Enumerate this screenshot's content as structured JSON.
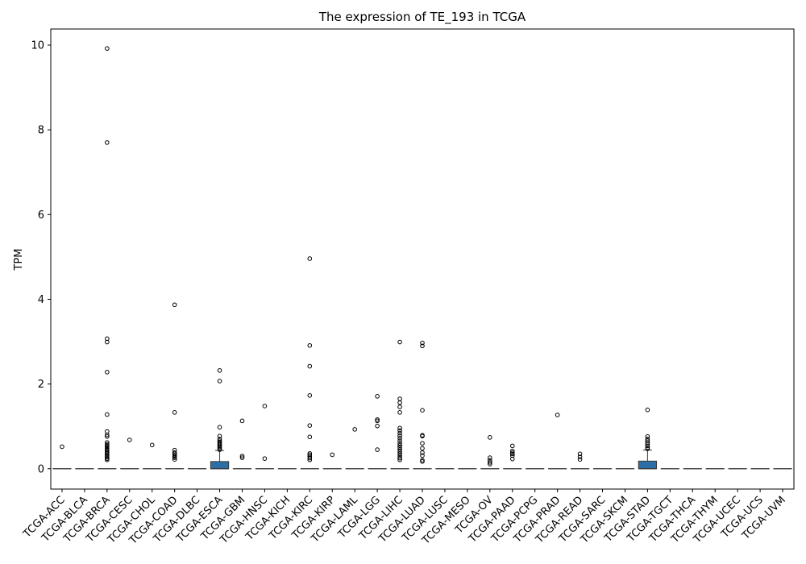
{
  "chart_data": {
    "type": "box",
    "title": "The expression of TE_193 in TCGA",
    "xlabel": "",
    "ylabel": "TPM",
    "ylim": [
      -0.48,
      10.38
    ],
    "yticks": [
      0,
      2,
      4,
      6,
      8,
      10
    ],
    "grid": false,
    "legend": "none",
    "box_color": "#2b6fa6",
    "categories": [
      "TCGA-ACC",
      "TCGA-BLCA",
      "TCGA-BRCA",
      "TCGA-CESC",
      "TCGA-CHOL",
      "TCGA-COAD",
      "TCGA-DLBC",
      "TCGA-ESCA",
      "TCGA-GBM",
      "TCGA-HNSC",
      "TCGA-KICH",
      "TCGA-KIRC",
      "TCGA-KIRP",
      "TCGA-LAML",
      "TCGA-LGG",
      "TCGA-LIHC",
      "TCGA-LUAD",
      "TCGA-LUSC",
      "TCGA-MESO",
      "TCGA-OV",
      "TCGA-PAAD",
      "TCGA-PCPG",
      "TCGA-PRAD",
      "TCGA-READ",
      "TCGA-SARC",
      "TCGA-SKCM",
      "TCGA-STAD",
      "TCGA-TGCT",
      "TCGA-THCA",
      "TCGA-THYM",
      "TCGA-UCEC",
      "TCGA-UCS",
      "TCGA-UVM"
    ],
    "boxes": [
      {
        "q1": 0,
        "median": 0,
        "q3": 0,
        "whisker_low": 0,
        "whisker_high": 0,
        "outliers": [
          0.52
        ]
      },
      {
        "q1": 0,
        "median": 0,
        "q3": 0,
        "whisker_low": 0,
        "whisker_high": 0,
        "outliers": []
      },
      {
        "q1": 0,
        "median": 0,
        "q3": 0,
        "whisker_low": 0,
        "whisker_high": 0,
        "outliers": [
          9.92,
          7.7,
          3.07,
          2.99,
          2.28,
          1.28,
          0.88,
          0.8,
          0.76,
          0.62,
          0.58,
          0.55,
          0.52,
          0.48,
          0.45,
          0.42,
          0.39,
          0.36,
          0.33,
          0.3,
          0.27,
          0.24,
          0.21
        ]
      },
      {
        "q1": 0,
        "median": 0,
        "q3": 0,
        "whisker_low": 0,
        "whisker_high": 0,
        "outliers": [
          0.68
        ]
      },
      {
        "q1": 0,
        "median": 0,
        "q3": 0,
        "whisker_low": 0,
        "whisker_high": 0,
        "outliers": [
          0.56
        ]
      },
      {
        "q1": 0,
        "median": 0,
        "q3": 0,
        "whisker_low": 0,
        "whisker_high": 0,
        "outliers": [
          3.87,
          1.33,
          0.44,
          0.38,
          0.35,
          0.32,
          0.29,
          0.26,
          0.22
        ]
      },
      {
        "q1": 0,
        "median": 0,
        "q3": 0,
        "whisker_low": 0,
        "whisker_high": 0,
        "outliers": []
      },
      {
        "q1": 0,
        "median": 0,
        "q3": 0.17,
        "whisker_low": 0,
        "whisker_high": 0.43,
        "outliers": [
          2.32,
          2.07,
          0.98,
          0.77,
          0.7,
          0.66,
          0.63,
          0.6,
          0.57,
          0.54,
          0.51,
          0.48,
          0.45
        ]
      },
      {
        "q1": 0,
        "median": 0,
        "q3": 0,
        "whisker_low": 0,
        "whisker_high": 0,
        "outliers": [
          1.13,
          0.3,
          0.26
        ]
      },
      {
        "q1": 0,
        "median": 0,
        "q3": 0,
        "whisker_low": 0,
        "whisker_high": 0,
        "outliers": [
          1.48,
          0.24
        ]
      },
      {
        "q1": 0,
        "median": 0,
        "q3": 0,
        "whisker_low": 0,
        "whisker_high": 0,
        "outliers": []
      },
      {
        "q1": 0,
        "median": 0,
        "q3": 0,
        "whisker_low": 0,
        "whisker_high": 0,
        "outliers": [
          4.96,
          2.91,
          2.42,
          1.73,
          1.02,
          0.75,
          0.36,
          0.33,
          0.29,
          0.25,
          0.21
        ]
      },
      {
        "q1": 0,
        "median": 0,
        "q3": 0,
        "whisker_low": 0,
        "whisker_high": 0,
        "outliers": [
          0.33
        ]
      },
      {
        "q1": 0,
        "median": 0,
        "q3": 0,
        "whisker_low": 0,
        "whisker_high": 0,
        "outliers": [
          0.93
        ]
      },
      {
        "q1": 0,
        "median": 0,
        "q3": 0,
        "whisker_low": 0,
        "whisker_high": 0,
        "outliers": [
          1.71,
          1.16,
          1.13,
          1.01,
          0.45
        ]
      },
      {
        "q1": 0,
        "median": 0,
        "q3": 0,
        "whisker_low": 0,
        "whisker_high": 0,
        "outliers": [
          2.99,
          1.65,
          1.56,
          1.46,
          1.33,
          0.96,
          0.9,
          0.84,
          0.78,
          0.72,
          0.66,
          0.6,
          0.55,
          0.5,
          0.45,
          0.4,
          0.35,
          0.3,
          0.25,
          0.21
        ]
      },
      {
        "q1": 0,
        "median": 0,
        "q3": 0,
        "whisker_low": 0,
        "whisker_high": 0,
        "outliers": [
          2.97,
          2.9,
          1.38,
          0.79,
          0.77,
          0.6,
          0.48,
          0.38,
          0.31,
          0.2,
          0.17
        ]
      },
      {
        "q1": 0,
        "median": 0,
        "q3": 0,
        "whisker_low": 0,
        "whisker_high": 0,
        "outliers": []
      },
      {
        "q1": 0,
        "median": 0,
        "q3": 0,
        "whisker_low": 0,
        "whisker_high": 0,
        "outliers": []
      },
      {
        "q1": 0,
        "median": 0,
        "q3": 0,
        "whisker_low": 0,
        "whisker_high": 0,
        "outliers": [
          0.74,
          0.26,
          0.2,
          0.15,
          0.11
        ]
      },
      {
        "q1": 0,
        "median": 0,
        "q3": 0,
        "whisker_low": 0,
        "whisker_high": 0,
        "outliers": [
          0.54,
          0.42,
          0.38,
          0.35,
          0.31,
          0.23
        ]
      },
      {
        "q1": 0,
        "median": 0,
        "q3": 0,
        "whisker_low": 0,
        "whisker_high": 0,
        "outliers": []
      },
      {
        "q1": 0,
        "median": 0,
        "q3": 0,
        "whisker_low": 0,
        "whisker_high": 0,
        "outliers": [
          1.27
        ]
      },
      {
        "q1": 0,
        "median": 0,
        "q3": 0,
        "whisker_low": 0,
        "whisker_high": 0,
        "outliers": [
          0.35,
          0.28,
          0.22
        ]
      },
      {
        "q1": 0,
        "median": 0,
        "q3": 0,
        "whisker_low": 0,
        "whisker_high": 0,
        "outliers": []
      },
      {
        "q1": 0,
        "median": 0,
        "q3": 0,
        "whisker_low": 0,
        "whisker_high": 0,
        "outliers": []
      },
      {
        "q1": 0,
        "median": 0,
        "q3": 0.18,
        "whisker_low": 0,
        "whisker_high": 0.44,
        "outliers": [
          1.39,
          0.76,
          0.7,
          0.66,
          0.62,
          0.58,
          0.54,
          0.5,
          0.47
        ]
      },
      {
        "q1": 0,
        "median": 0,
        "q3": 0,
        "whisker_low": 0,
        "whisker_high": 0,
        "outliers": []
      },
      {
        "q1": 0,
        "median": 0,
        "q3": 0,
        "whisker_low": 0,
        "whisker_high": 0,
        "outliers": []
      },
      {
        "q1": 0,
        "median": 0,
        "q3": 0,
        "whisker_low": 0,
        "whisker_high": 0,
        "outliers": []
      },
      {
        "q1": 0,
        "median": 0,
        "q3": 0,
        "whisker_low": 0,
        "whisker_high": 0,
        "outliers": []
      },
      {
        "q1": 0,
        "median": 0,
        "q3": 0,
        "whisker_low": 0,
        "whisker_high": 0,
        "outliers": []
      },
      {
        "q1": 0,
        "median": 0,
        "q3": 0,
        "whisker_low": 0,
        "whisker_high": 0,
        "outliers": []
      }
    ]
  }
}
